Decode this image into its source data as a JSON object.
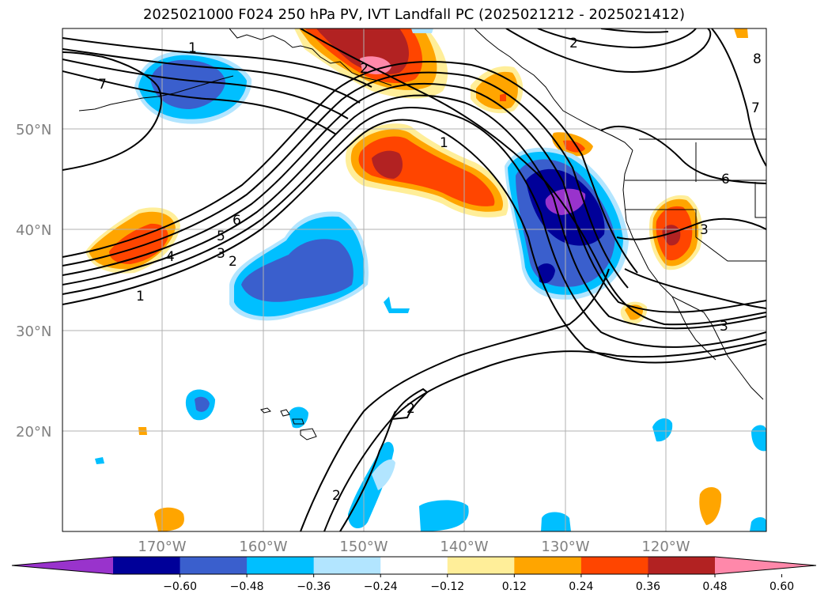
{
  "title": "2025021000 F024 250 hPa PV, IVT Landfall PC (2025021212 - 2025021412)",
  "lat_labels": [
    "50°N",
    "40°N",
    "30°N",
    "20°N"
  ],
  "lon_labels": [
    "170°W",
    "160°W",
    "150°W",
    "140°W",
    "130°W",
    "120°W"
  ],
  "colorbar": {
    "colors": [
      "#9933cc",
      "#000099",
      "#3a5fcd",
      "#00bfff",
      "#b2e5ff",
      "#ffffff",
      "#ffee99",
      "#ffa500",
      "#ff4500",
      "#b22222",
      "#ff88aa"
    ],
    "tick_labels": [
      "−0.60",
      "−0.48",
      "−0.36",
      "−0.24",
      "−0.12",
      "0.12",
      "0.24",
      "0.36",
      "0.48",
      "0.60"
    ]
  },
  "contour_labels": [
    "1",
    "2",
    "3",
    "4",
    "5",
    "6",
    "7",
    "1",
    "2",
    "3",
    "6",
    "7",
    "8",
    "2",
    "2",
    "1",
    "3",
    "2"
  ],
  "palette": {
    "orange": "#ffa500",
    "red_orange": "#ff4500",
    "dark_red": "#b22222",
    "pink": "#ff88aa",
    "yellow": "#ffee99",
    "light_blue": "#b2e5ff",
    "sky_blue": "#00bfff",
    "royal_blue": "#3a5fcd",
    "navy": "#000099",
    "purple": "#9933cc"
  }
}
